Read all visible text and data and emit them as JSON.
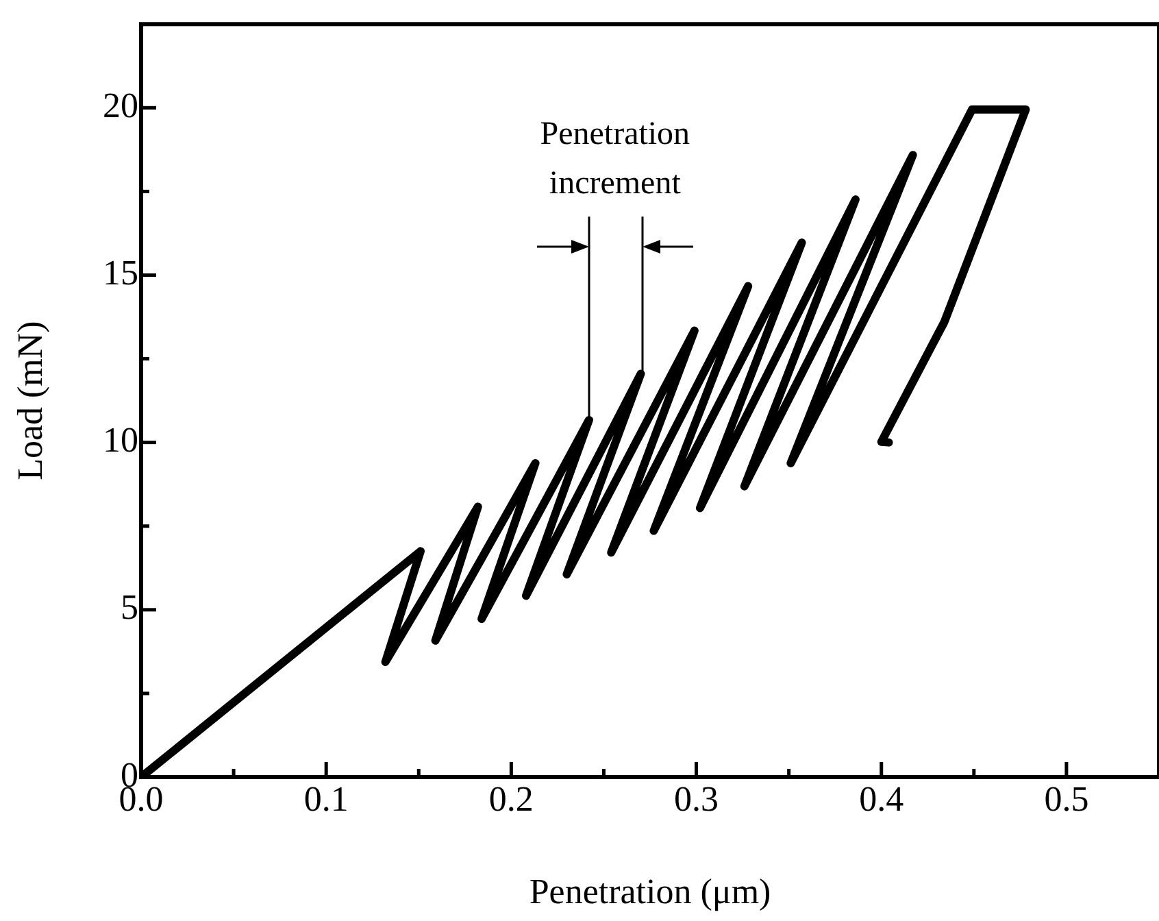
{
  "chart_data": {
    "type": "line",
    "xlabel": "Penetration (μm)",
    "ylabel": "Load (mN)",
    "x": [
      0,
      0.151,
      0.132,
      0.182,
      0.159,
      0.213,
      0.184,
      0.242,
      0.208,
      0.27,
      0.23,
      0.299,
      0.254,
      0.328,
      0.277,
      0.357,
      0.302,
      0.386,
      0.326,
      0.417,
      0.351,
      0.449,
      0.478,
      0.434,
      0.4,
      0.404
    ],
    "values": [
      0,
      6.75,
      3.44,
      8.08,
      4.08,
      9.38,
      4.73,
      10.67,
      5.42,
      12.05,
      6.06,
      13.34,
      6.71,
      14.67,
      7.36,
      15.97,
      8.04,
      17.26,
      8.69,
      18.59,
      9.38,
      19.95,
      19.95,
      13.6,
      10.02,
      10.0
    ],
    "color": "#000000",
    "marker": "none",
    "line_style": "solid",
    "xlim": [
      0,
      0.55
    ],
    "ylim": [
      0,
      22.5
    ],
    "xticks": [
      {
        "value": 0,
        "label": "0.0"
      },
      {
        "value": 0.05,
        "label": null
      },
      0.1,
      {
        "value": 0.15,
        "label": null
      },
      0.2,
      {
        "value": 0.25,
        "label": null
      },
      0.3,
      {
        "value": 0.35,
        "label": null
      },
      0.4,
      {
        "value": 0.45,
        "label": null
      },
      0.5
    ],
    "yticks": [
      0,
      {
        "value": 2.5,
        "label": null
      },
      5,
      {
        "value": 7.5,
        "label": null
      },
      10,
      {
        "value": 12.5,
        "label": null
      },
      15,
      {
        "value": 17.5,
        "label": null
      },
      20
    ],
    "annotations": [
      {
        "text": "Penetration increment",
        "x": 0.242,
        "y": 10.67
      }
    ]
  }
}
